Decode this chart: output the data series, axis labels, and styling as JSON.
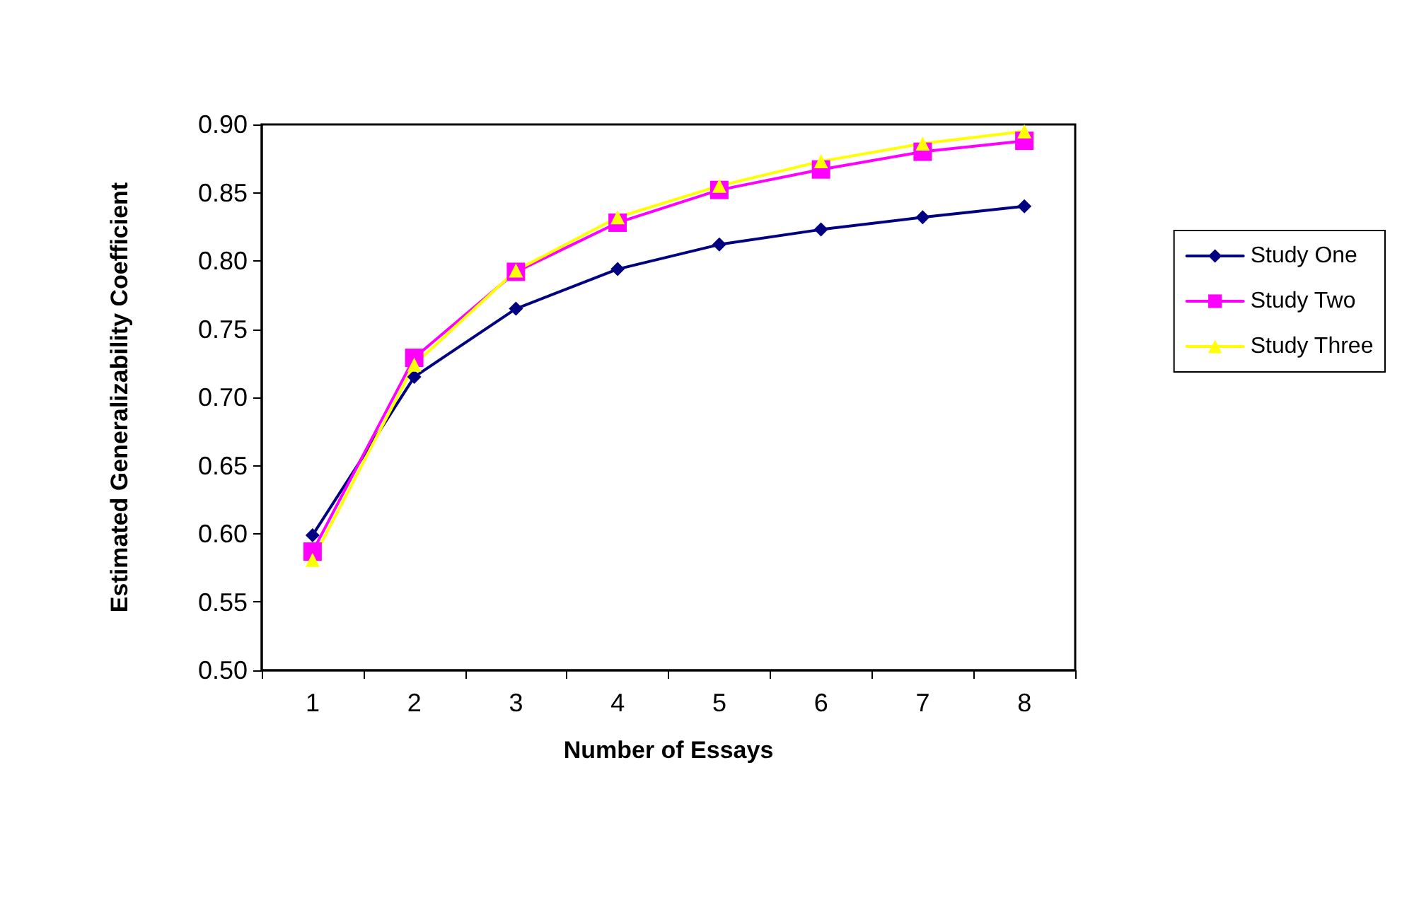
{
  "chart_data": {
    "type": "line",
    "xlabel": "Number of Essays",
    "ylabel": "Estimated Generalizability Coefficient",
    "categories": [
      "1",
      "2",
      "3",
      "4",
      "5",
      "6",
      "7",
      "8"
    ],
    "series": [
      {
        "name": "Study One",
        "color": "#000080",
        "marker": "diamond",
        "values": [
          0.599,
          0.715,
          0.765,
          0.794,
          0.812,
          0.823,
          0.832,
          0.84
        ]
      },
      {
        "name": "Study Two",
        "color": "#ff00ff",
        "marker": "square",
        "values": [
          0.587,
          0.729,
          0.792,
          0.828,
          0.852,
          0.867,
          0.88,
          0.888
        ]
      },
      {
        "name": "Study Three",
        "color": "#ffff00",
        "marker": "triangle",
        "values": [
          0.581,
          0.724,
          0.793,
          0.832,
          0.855,
          0.873,
          0.886,
          0.895
        ]
      }
    ],
    "ylim": [
      0.5,
      0.9
    ],
    "yticks": [
      {
        "value": 0.5,
        "label": "0.50"
      },
      {
        "value": 0.55,
        "label": "0.55"
      },
      {
        "value": 0.6,
        "label": "0.60"
      },
      {
        "value": 0.65,
        "label": "0.65"
      },
      {
        "value": 0.7,
        "label": "0.70"
      },
      {
        "value": 0.75,
        "label": "0.75"
      },
      {
        "value": 0.8,
        "label": "0.80"
      },
      {
        "value": 0.85,
        "label": "0.85"
      },
      {
        "value": 0.9,
        "label": "0.90"
      }
    ],
    "grid": false,
    "legend": "right",
    "line_style": "solid"
  }
}
